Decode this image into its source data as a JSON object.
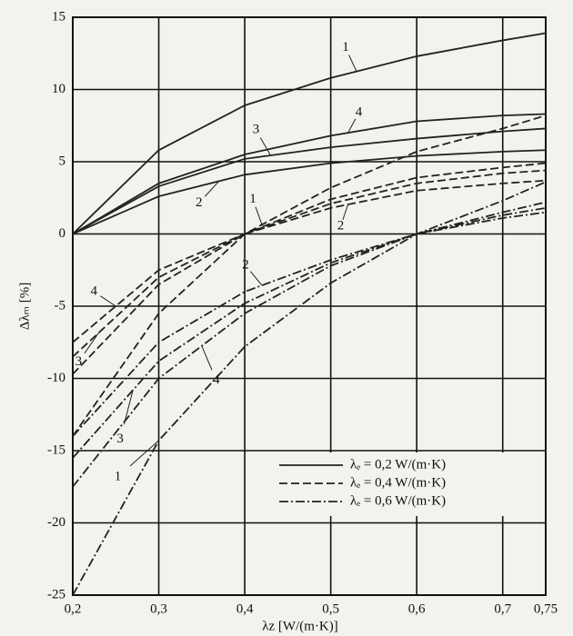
{
  "chart_data": {
    "type": "line",
    "xlabel": "λz [W/(m·K)]",
    "ylabel": "Δλₘ [%]",
    "x": [
      0.2,
      0.3,
      0.4,
      0.5,
      0.6,
      0.7,
      0.75
    ],
    "xlim": [
      0.2,
      0.75
    ],
    "xticks": [
      {
        "value": 0.2,
        "label": "0,2"
      },
      {
        "value": 0.3,
        "label": "0,3"
      },
      {
        "value": 0.4,
        "label": "0,4"
      },
      {
        "value": 0.5,
        "label": "0,5"
      },
      {
        "value": 0.6,
        "label": "0,6"
      },
      {
        "value": 0.7,
        "label": "0,7"
      },
      {
        "value": 0.75,
        "label": "0,75"
      }
    ],
    "ylim": [
      -25,
      15
    ],
    "yticks": [
      -25,
      -20,
      -15,
      -10,
      -5,
      0,
      5,
      10,
      15
    ],
    "grid": true,
    "legend": "lower right",
    "color": "#222222",
    "series": [
      {
        "name": "λₑ = 0,2 W/(m·K)",
        "style": "solid",
        "curves": [
          {
            "label": "1",
            "values": [
              0,
              5.8,
              8.9,
              10.8,
              12.3,
              13.4,
              13.9
            ]
          },
          {
            "label": "2",
            "values": [
              0,
              2.6,
              4.1,
              4.9,
              5.4,
              5.7,
              5.8
            ]
          },
          {
            "label": "3",
            "values": [
              0,
              3.3,
              5.2,
              6.0,
              6.6,
              7.1,
              7.3
            ]
          },
          {
            "label": "4",
            "values": [
              0,
              3.5,
              5.5,
              6.8,
              7.8,
              8.2,
              8.3
            ]
          }
        ]
      },
      {
        "name": "λₑ = 0,4 W/(m·K)",
        "style": "dashed",
        "curves": [
          {
            "label": "1",
            "values": [
              -14,
              -5.5,
              0,
              3.2,
              5.7,
              7.3,
              8.2
            ]
          },
          {
            "label": "2",
            "values": [
              -9.7,
              -3.5,
              0,
              1.8,
              3.0,
              3.5,
              3.7
            ]
          },
          {
            "label": "3",
            "values": [
              -8.5,
              -3.0,
              0,
              2.1,
              3.5,
              4.2,
              4.4
            ]
          },
          {
            "label": "4",
            "values": [
              -7.5,
              -2.5,
              0,
              2.4,
              3.9,
              4.6,
              4.9
            ]
          }
        ]
      },
      {
        "name": "λₑ = 0,6 W/(m·K)",
        "style": "dashdot",
        "curves": [
          {
            "label": "1",
            "values": [
              -25,
              -14.3,
              -7.8,
              -3.4,
              0,
              2.3,
              3.6
            ]
          },
          {
            "label": "2",
            "values": [
              -14,
              -7.5,
              -4.0,
              -1.8,
              0,
              1.1,
              1.5
            ]
          },
          {
            "label": "3",
            "values": [
              -15.5,
              -8.8,
              -4.8,
              -2.0,
              0,
              1.3,
              1.8
            ]
          },
          {
            "label": "4",
            "values": [
              -17.5,
              -10,
              -5.5,
              -2.2,
              0,
              1.5,
              2.2
            ]
          }
        ]
      }
    ]
  }
}
